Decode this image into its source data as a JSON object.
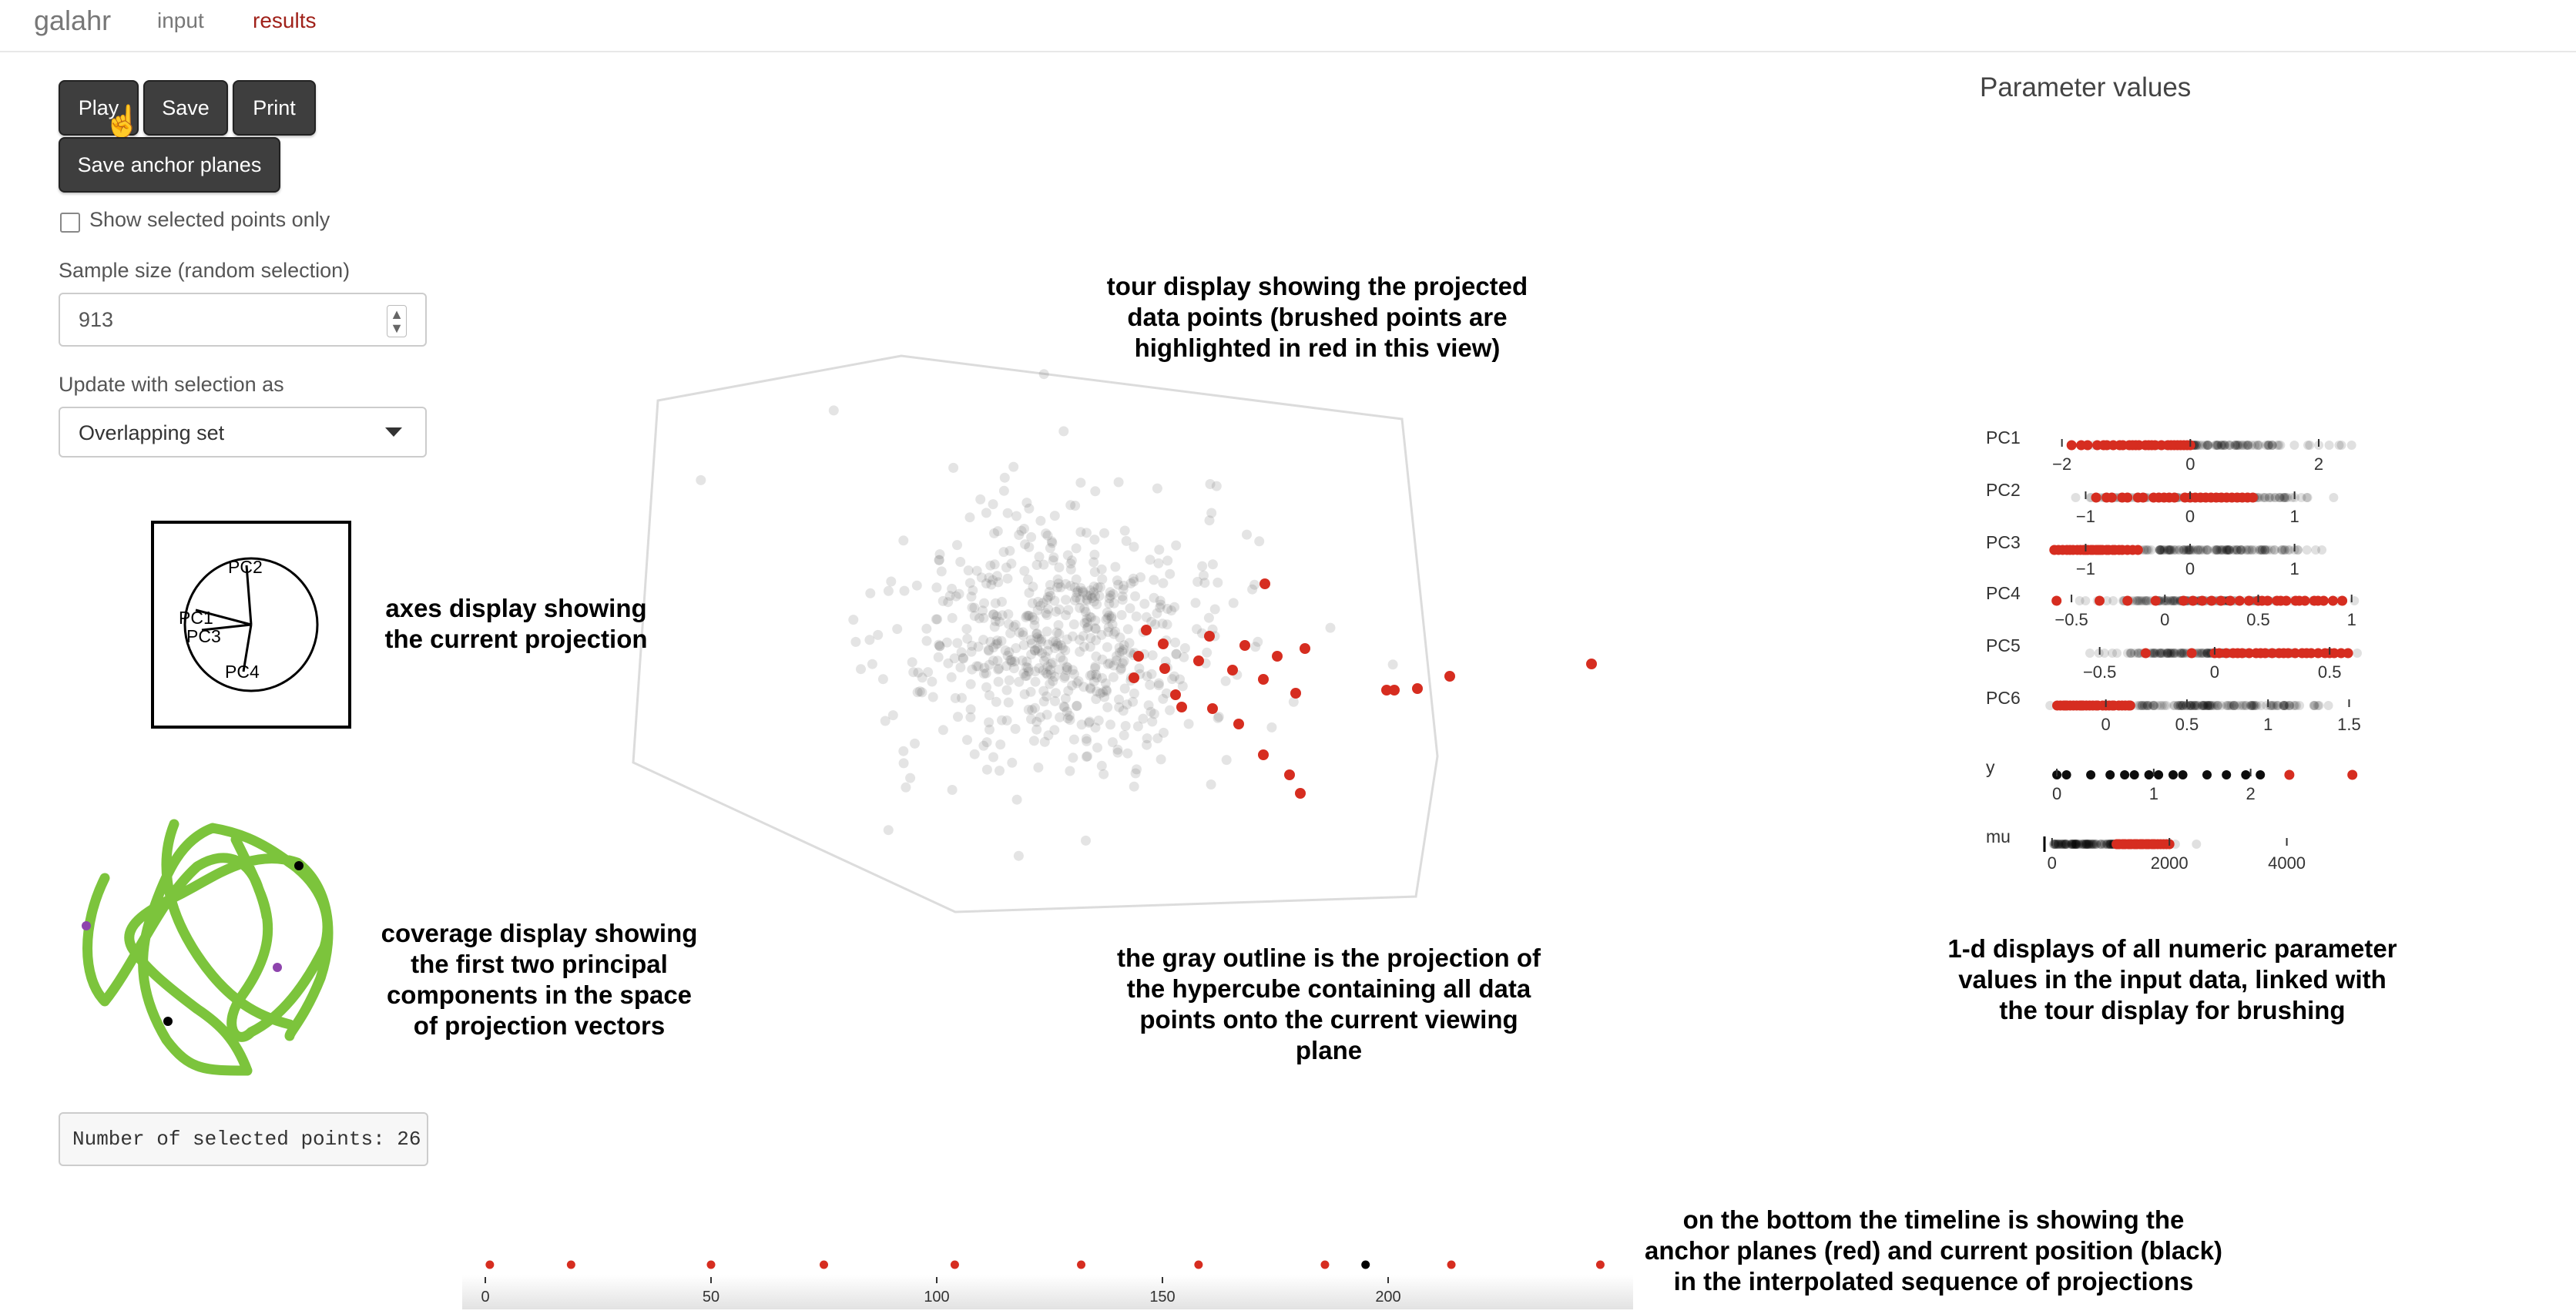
{
  "navbar": {
    "brand": "galahr",
    "tabs": [
      {
        "label": "input"
      },
      {
        "label": "results"
      }
    ]
  },
  "controls": {
    "play_label": "Play",
    "save_label": "Save",
    "print_label": "Print",
    "save_anchor_label": "Save anchor planes",
    "show_selected_label": "Show selected points only",
    "sample_size_label": "Sample size (random selection)",
    "sample_size_value": "913",
    "update_label": "Update with selection as",
    "update_value": "Overlapping set",
    "selected_points_text": "Number of selected points: 26"
  },
  "axes_display": {
    "labels": [
      "PC2",
      "PC1",
      "PC3",
      "PC4"
    ]
  },
  "parameter_panel": {
    "title": "Parameter values"
  },
  "annotations": {
    "tour": [
      "tour display showing the projected",
      "data points (brushed points are",
      "highlighted in red in this view)"
    ],
    "axes": [
      "axes display showing",
      "the current projection"
    ],
    "coverage": [
      "coverage display showing",
      "the first two principal",
      "components in the space",
      "of projection vectors"
    ],
    "outline": [
      "the gray outline is the projection of",
      "the hypercube containing all data",
      "points onto the current viewing",
      "plane"
    ],
    "onedim": [
      "1-d displays of all numeric parameter",
      "values in the input data, linked with",
      "the tour display for brushing"
    ],
    "timeline": [
      "on the bottom the timeline is showing the",
      "anchor planes (red) and current position (black)",
      "in the interpolated sequence of projections"
    ]
  },
  "chart_data": [
    {
      "type": "strip",
      "rows": [
        {
          "name": "PC1",
          "ticks": [
            -2,
            0,
            2
          ],
          "range": [
            -2.2,
            2.6
          ],
          "red": [
            -1.85,
            -1.45,
            -1.3,
            -1.2,
            -1.05,
            -0.95,
            -0.8,
            -0.7,
            -0.6,
            -0.45,
            -0.3,
            -0.2,
            -0.1,
            0.0,
            -1.6,
            -1.1,
            -0.85,
            -0.55,
            -0.35,
            -0.05,
            -1.35,
            -0.9,
            -0.65,
            -0.25,
            -1.7,
            -0.15
          ]
        },
        {
          "name": "PC2",
          "ticks": [
            -1,
            0,
            1
          ],
          "range": [
            -1.35,
            1.6
          ],
          "red": [
            -0.8,
            -0.65,
            -0.5,
            -0.35,
            -0.2,
            -0.05,
            0.1,
            0.25,
            0.4,
            0.55,
            -0.45,
            0.0,
            0.3,
            -0.9,
            0.15,
            0.5,
            -0.3,
            0.05,
            0.35,
            -0.6,
            0.2,
            -0.15,
            0.45,
            -0.75,
            0.6,
            -0.25
          ]
        },
        {
          "name": "PC3",
          "ticks": [
            -1,
            0,
            1
          ],
          "range": [
            -1.35,
            1.6
          ],
          "red": [
            -1.3,
            -1.22,
            -1.15,
            -1.08,
            -1.0,
            -0.93,
            -0.86,
            -0.8,
            -0.72,
            -0.65,
            -0.55,
            -1.18,
            -1.05,
            -0.9,
            -0.98,
            -1.26,
            -0.78,
            -0.68,
            -1.12,
            -0.84,
            -0.6,
            -0.95,
            -1.02,
            -0.74,
            -0.5,
            -0.88
          ]
        },
        {
          "name": "PC4",
          "ticks": [
            -0.5,
            0,
            0.5,
            1
          ],
          "range": [
            -0.62,
            1.03
          ],
          "red": [
            -0.58,
            -0.35,
            -0.2,
            -0.05,
            0.1,
            0.2,
            0.3,
            0.4,
            0.5,
            0.55,
            0.6,
            0.65,
            0.7,
            0.75,
            0.8,
            0.85,
            0.9,
            0.95,
            0.45,
            0.35,
            0.25,
            0.62,
            0.72,
            0.82,
            0.15,
            0.52
          ]
        },
        {
          "name": "PC5",
          "ticks": [
            -0.5,
            0,
            0.5
          ],
          "range": [
            -0.72,
            0.62
          ],
          "red": [
            -0.3,
            -0.1,
            0.0,
            0.05,
            0.1,
            0.15,
            0.2,
            0.25,
            0.3,
            0.35,
            0.4,
            0.45,
            0.5,
            0.55,
            0.58,
            0.08,
            0.18,
            0.28,
            0.38,
            0.48,
            0.12,
            0.22,
            0.32,
            0.42,
            0.52,
            0.02
          ]
        },
        {
          "name": "PC6",
          "ticks": [
            0,
            0.5,
            1,
            1.5
          ],
          "range": [
            -0.35,
            1.55
          ],
          "red": [
            -0.3,
            -0.25,
            -0.2,
            -0.15,
            -0.1,
            -0.05,
            0.0,
            0.05,
            0.1,
            0.15,
            -0.28,
            -0.22,
            -0.18,
            -0.12,
            -0.08,
            -0.02,
            0.02,
            0.08,
            0.12,
            -0.26,
            -0.16,
            -0.06,
            0.04,
            0.14,
            -0.24,
            -0.14
          ]
        },
        {
          "name": "y",
          "ticks": [
            0,
            1,
            2
          ],
          "range": [
            -0.08,
            3.1
          ],
          "red": [
            2.4,
            3.05
          ]
        },
        {
          "name": "mu",
          "ticks": [
            0,
            2000,
            4000
          ],
          "range": [
            -50,
            5200
          ],
          "red": [
            1100,
            1150,
            1200,
            1250,
            1300,
            1350,
            1400,
            1450,
            1500,
            1550,
            1600,
            1650,
            1700,
            1750,
            1800,
            1850,
            1900,
            1950,
            2000,
            1125,
            1225,
            1325,
            1425,
            1525,
            1625,
            1725
          ]
        }
      ]
    },
    {
      "type": "timeline",
      "ticks": [
        0,
        50,
        100,
        150,
        200
      ],
      "anchors": [
        1,
        19,
        50,
        75,
        104,
        132,
        158,
        186,
        214,
        247
      ],
      "current": 195
    }
  ]
}
